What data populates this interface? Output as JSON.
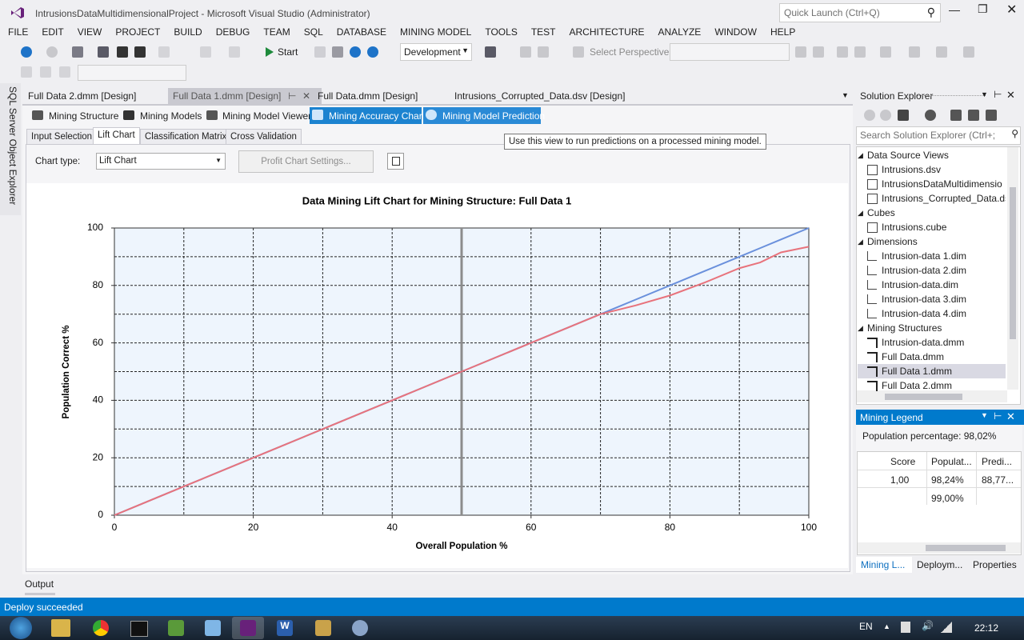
{
  "window": {
    "title": "IntrusionsDataMultidimensionalProject - Microsoft Visual Studio (Administrator)",
    "quick_launch": "Quick Launch (Ctrl+Q)"
  },
  "menu": [
    "FILE",
    "EDIT",
    "VIEW",
    "PROJECT",
    "BUILD",
    "DEBUG",
    "TEAM",
    "SQL",
    "DATABASE",
    "MINING MODEL",
    "TOOLS",
    "TEST",
    "ARCHITECTURE",
    "ANALYZE",
    "WINDOW",
    "HELP"
  ],
  "toolbar": {
    "start": "Start",
    "configuration": "Development",
    "perspective": "Select Perspective"
  },
  "side_tab": "SQL Server Object Explorer",
  "doc_tabs": [
    "Full Data 2.dmm [Design]",
    "Full Data 1.dmm [Design]",
    "Full Data.dmm [Design]",
    "Intrusions_Corrupted_Data.dsv [Design]"
  ],
  "designer_tabs": [
    "Mining Structure",
    "Mining Models",
    "Mining Model Viewer",
    "Mining Accuracy Chart",
    "Mining Model Prediction"
  ],
  "tooltip": "Use this view to run predictions on a processed mining model.",
  "sub_tabs": [
    "Input Selection",
    "Lift Chart",
    "Classification Matrix",
    "Cross Validation"
  ],
  "chart_type_label": "Chart type:",
  "chart_type_value": "Lift Chart",
  "profit_button": "Profit Chart Settings...",
  "chart_data": {
    "type": "line",
    "title": "Data Mining Lift Chart for Mining Structure: Full Data 1",
    "x_label": "Overall Population %",
    "y_label": "Population Correct %",
    "x": [
      0,
      10,
      20,
      30,
      40,
      50,
      60,
      70,
      75,
      80,
      85,
      90,
      93,
      96,
      100
    ],
    "series": [
      {
        "color": "#6a90dc",
        "values": [
          0,
          10,
          20,
          30,
          40,
          50,
          60,
          70,
          75,
          80,
          85,
          90,
          93,
          96,
          100
        ]
      },
      {
        "color": "#e8737c",
        "values": [
          0,
          10,
          20,
          30,
          40,
          50,
          60,
          70,
          73,
          76.5,
          81,
          86,
          88,
          91.5,
          93.5
        ]
      }
    ],
    "xlim": [
      0,
      100
    ],
    "ylim": [
      0,
      100
    ],
    "xticks": [
      0,
      20,
      40,
      60,
      80,
      100
    ],
    "yticks": [
      0,
      20,
      40,
      60,
      80,
      100
    ],
    "minor_xticks": [
      10,
      30,
      50,
      70,
      90
    ],
    "minor_yticks": [
      10,
      30,
      50,
      70,
      90
    ],
    "grid": true,
    "marker_x": 50
  },
  "solution_explorer": {
    "title": "Solution Explorer",
    "search": "Search Solution Explorer (Ctrl+;",
    "groups": [
      {
        "label": "Data Source Views",
        "items": [
          "Intrusions.dsv",
          "IntrusionsDataMultidimensio",
          "Intrusions_Corrupted_Data.ds"
        ]
      },
      {
        "label": "Cubes",
        "items": [
          "Intrusions.cube"
        ]
      },
      {
        "label": "Dimensions",
        "items": [
          "Intrusion-data 1.dim",
          "Intrusion-data 2.dim",
          "Intrusion-data.dim",
          "Intrusion-data 3.dim",
          "Intrusion-data 4.dim"
        ]
      },
      {
        "label": "Mining Structures",
        "items": [
          "Intrusion-data.dmm",
          "Full Data.dmm",
          "Full Data 1.dmm",
          "Full Data 2.dmm"
        ]
      }
    ]
  },
  "mining_legend": {
    "title": "Mining Legend",
    "population_percentage": "Population percentage: 98,02%",
    "columns": [
      "Score",
      "Populat...",
      "Predi..."
    ],
    "rows": [
      {
        "score": "1,00",
        "population": "98,24%",
        "predict": "88,77..."
      },
      {
        "population": "99,00%"
      }
    ]
  },
  "bottom_tabs": [
    "Mining L...",
    "Deploym...",
    "Properties"
  ],
  "output": "Output",
  "status": "Deploy succeeded",
  "taskbar": {
    "language": "EN",
    "time": "22:12"
  }
}
